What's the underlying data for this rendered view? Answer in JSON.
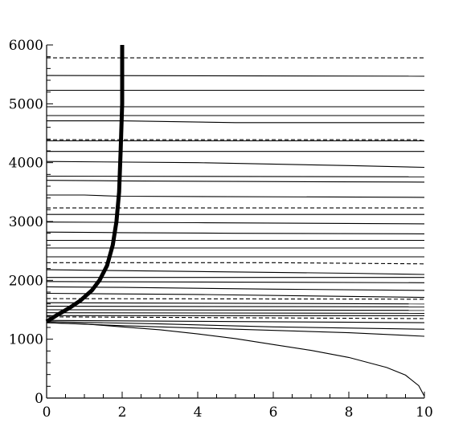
{
  "chart_data": {
    "type": "line",
    "title": "",
    "xlabel": "",
    "ylabel": "",
    "xlim": [
      0,
      10
    ],
    "ylim": [
      0,
      6000
    ],
    "x_ticks": [
      0,
      2,
      4,
      6,
      8,
      10
    ],
    "x_tick_labels": [
      "0",
      "2",
      "4",
      "6",
      "8",
      "10"
    ],
    "y_ticks": [
      0,
      1000,
      2000,
      3000,
      4000,
      5000,
      6000
    ],
    "y_tick_labels": [
      "0",
      "1000",
      "2000",
      "3000",
      "4000",
      "5000",
      "6000"
    ],
    "x_minor_step": 0.5,
    "y_minor_step": 200,
    "grid": false,
    "legend": "none",
    "colors": {
      "lines": "#000000",
      "background": "#ffffff"
    },
    "solid_contours": [
      {
        "x": [
          0,
          10
        ],
        "y": [
          5480,
          5470
        ]
      },
      {
        "x": [
          0,
          10
        ],
        "y": [
          5230,
          5230
        ]
      },
      {
        "x": [
          0,
          10
        ],
        "y": [
          4950,
          4950
        ]
      },
      {
        "x": [
          0,
          10
        ],
        "y": [
          4800,
          4800
        ]
      },
      {
        "x": [
          0,
          2,
          5,
          10
        ],
        "y": [
          4710,
          4710,
          4680,
          4680
        ]
      },
      {
        "x": [
          0,
          10
        ],
        "y": [
          4370,
          4370
        ]
      },
      {
        "x": [
          0,
          10
        ],
        "y": [
          4190,
          4190
        ]
      },
      {
        "x": [
          0,
          4,
          8,
          10
        ],
        "y": [
          4020,
          4000,
          3950,
          3920
        ]
      },
      {
        "x": [
          0,
          10
        ],
        "y": [
          3770,
          3760
        ]
      },
      {
        "x": [
          0,
          2,
          5,
          10
        ],
        "y": [
          3700,
          3690,
          3680,
          3670
        ]
      },
      {
        "x": [
          0,
          1,
          1.9,
          10
        ],
        "y": [
          3450,
          3450,
          3430,
          3410
        ]
      },
      {
        "x": [
          0,
          10
        ],
        "y": [
          3120,
          3120
        ]
      },
      {
        "x": [
          0,
          4,
          10
        ],
        "y": [
          2990,
          2980,
          2960
        ]
      },
      {
        "x": [
          0,
          2,
          5,
          10
        ],
        "y": [
          2820,
          2810,
          2800,
          2790
        ]
      },
      {
        "x": [
          0,
          10
        ],
        "y": [
          2680,
          2680
        ]
      },
      {
        "x": [
          0,
          10
        ],
        "y": [
          2550,
          2550
        ]
      },
      {
        "x": [
          0,
          10
        ],
        "y": [
          2400,
          2400
        ]
      },
      {
        "x": [
          0,
          4,
          8,
          10
        ],
        "y": [
          2180,
          2150,
          2120,
          2100
        ]
      },
      {
        "x": [
          0,
          10
        ],
        "y": [
          2050,
          2050
        ]
      },
      {
        "x": [
          0,
          10
        ],
        "y": [
          1980,
          1960
        ]
      },
      {
        "x": [
          0,
          2,
          6,
          10
        ],
        "y": [
          1890,
          1880,
          1850,
          1830
        ]
      },
      {
        "x": [
          0,
          4,
          10
        ],
        "y": [
          1780,
          1760,
          1710
        ]
      },
      {
        "x": [
          0,
          10
        ],
        "y": [
          1620,
          1600
        ]
      },
      {
        "x": [
          0,
          10
        ],
        "y": [
          1560,
          1550
        ]
      },
      {
        "x": [
          0,
          10
        ],
        "y": [
          1500,
          1490
        ]
      },
      {
        "x": [
          0,
          10
        ],
        "y": [
          1450,
          1440
        ]
      },
      {
        "x": [
          0,
          10
        ],
        "y": [
          1400,
          1400
        ]
      },
      {
        "x": [
          0,
          5,
          10
        ],
        "y": [
          1320,
          1300,
          1280
        ]
      },
      {
        "x": [
          0,
          3,
          6,
          10
        ],
        "y": [
          1300,
          1260,
          1210,
          1170
        ]
      },
      {
        "x": [
          0,
          2,
          5,
          8,
          10
        ],
        "y": [
          1280,
          1230,
          1170,
          1110,
          1050
        ]
      },
      {
        "x": [
          0,
          1,
          2,
          3,
          4,
          5,
          6,
          7,
          8,
          9,
          9.5,
          9.85,
          10
        ],
        "y": [
          1280,
          1260,
          1210,
          1160,
          1090,
          1010,
          910,
          810,
          690,
          520,
          390,
          210,
          30
        ]
      }
    ],
    "dashed_contours": [
      {
        "x": [
          0,
          10
        ],
        "y": [
          5780,
          5780
        ]
      },
      {
        "x": [
          0,
          9.8,
          10
        ],
        "y": [
          4390,
          4390,
          4370
        ]
      },
      {
        "x": [
          0,
          10
        ],
        "y": [
          3230,
          3230
        ]
      },
      {
        "x": [
          0,
          6,
          10
        ],
        "y": [
          2300,
          2300,
          2280
        ]
      },
      {
        "x": [
          0,
          10
        ],
        "y": [
          1690,
          1680
        ]
      },
      {
        "x": [
          0,
          10
        ],
        "y": [
          1380,
          1350
        ]
      }
    ],
    "series": [
      {
        "x": [
          0,
          0.3,
          0.6,
          0.9,
          1.2,
          1.4,
          1.6,
          1.75,
          1.85,
          1.92,
          1.96,
          2.0,
          2.0
        ],
        "y": [
          1300,
          1420,
          1530,
          1660,
          1830,
          2000,
          2250,
          2600,
          3000,
          3500,
          4200,
          5000,
          6000
        ]
      }
    ]
  }
}
